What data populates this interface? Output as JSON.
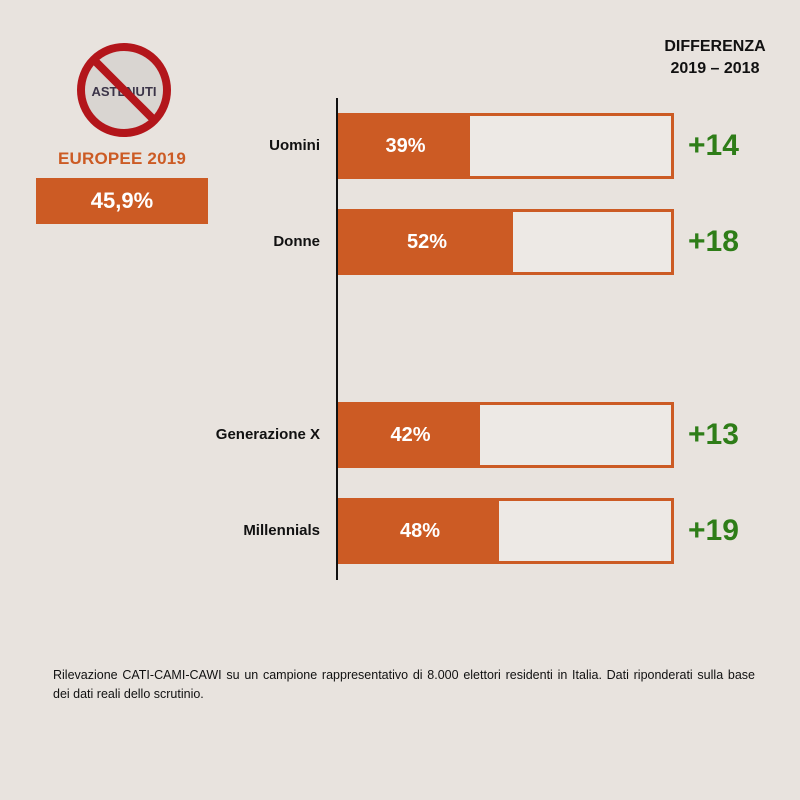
{
  "badge": {
    "icon_text": "ASTENUTI",
    "title": "EUROPEE 2019",
    "value": "45,9%"
  },
  "header": {
    "line1": "DIFFERENZA",
    "line2": "2019 – 2018"
  },
  "chart_data": {
    "type": "bar",
    "orientation": "horizontal",
    "categories": [
      "Uomini",
      "Donne",
      "Generazione X",
      "Millennials"
    ],
    "values": [
      39,
      52,
      42,
      48
    ],
    "value_labels": [
      "39%",
      "52%",
      "42%",
      "48%"
    ],
    "differences": [
      "+14",
      "+18",
      "+13",
      "+19"
    ],
    "xlim": [
      0,
      100
    ],
    "colors": {
      "bar": "#cc5b24",
      "difference": "#2e7d18"
    }
  },
  "footnote": "Rilevazione CATI-CAMI-CAWI su un campione rappresentativo di 8.000 elettori residenti in Italia. Dati riponderati sulla base dei dati reali dello scrutinio."
}
